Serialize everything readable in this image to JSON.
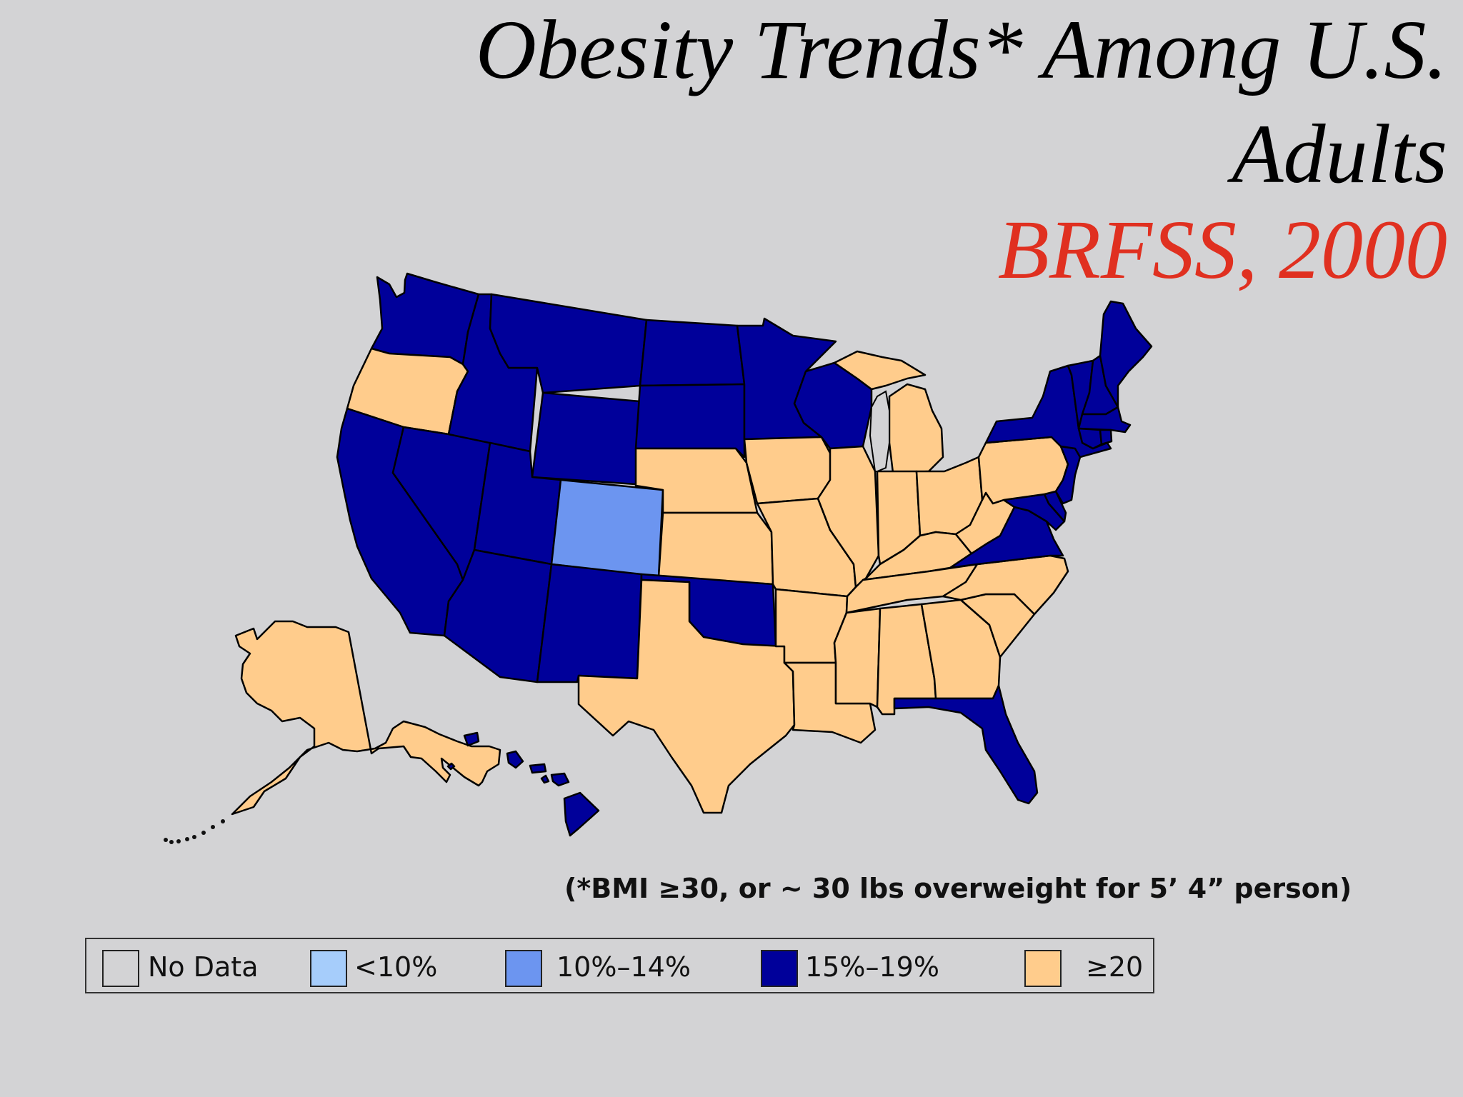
{
  "title": {
    "line1": "Obesity Trends* Among U.S.",
    "line2": "Adults",
    "line3": "BRFSS, 2000"
  },
  "footnote": "(*BMI ≥30, or ~ 30 lbs overweight for 5’ 4” person)",
  "legend": [
    {
      "label": "No Data",
      "color": "#d3d3d5"
    },
    {
      "label": "<10%",
      "color": "#a6cdfb"
    },
    {
      "label": "10%–14%",
      "color": "#6c95f0"
    },
    {
      "label": "15%–19%",
      "color": "#00009a"
    },
    {
      "label": "≥20",
      "color": "#ffcc8c"
    }
  ],
  "colors": {
    "background": "#d3d3d5",
    "title_red": "#e03020"
  },
  "states": [
    {
      "name": "Washington",
      "category": "15%–19%"
    },
    {
      "name": "Oregon",
      "category": "≥20"
    },
    {
      "name": "California",
      "category": "15%–19%"
    },
    {
      "name": "Nevada",
      "category": "15%–19%"
    },
    {
      "name": "Idaho",
      "category": "15%–19%"
    },
    {
      "name": "Montana",
      "category": "15%–19%"
    },
    {
      "name": "Wyoming",
      "category": "15%–19%"
    },
    {
      "name": "Utah",
      "category": "15%–19%"
    },
    {
      "name": "Arizona",
      "category": "15%–19%"
    },
    {
      "name": "Colorado",
      "category": "10%–14%"
    },
    {
      "name": "New Mexico",
      "category": "15%–19%"
    },
    {
      "name": "North Dakota",
      "category": "15%–19%"
    },
    {
      "name": "South Dakota",
      "category": "15%–19%"
    },
    {
      "name": "Nebraska",
      "category": "≥20"
    },
    {
      "name": "Kansas",
      "category": "≥20"
    },
    {
      "name": "Oklahoma",
      "category": "15%–19%"
    },
    {
      "name": "Texas",
      "category": "≥20"
    },
    {
      "name": "Minnesota",
      "category": "15%–19%"
    },
    {
      "name": "Iowa",
      "category": "≥20"
    },
    {
      "name": "Missouri",
      "category": "≥20"
    },
    {
      "name": "Arkansas",
      "category": "≥20"
    },
    {
      "name": "Louisiana",
      "category": "≥20"
    },
    {
      "name": "Wisconsin",
      "category": "15%–19%"
    },
    {
      "name": "Illinois",
      "category": "≥20"
    },
    {
      "name": "Michigan",
      "category": "≥20"
    },
    {
      "name": "Indiana",
      "category": "≥20"
    },
    {
      "name": "Ohio",
      "category": "≥20"
    },
    {
      "name": "Kentucky",
      "category": "≥20"
    },
    {
      "name": "Tennessee",
      "category": "≥20"
    },
    {
      "name": "Mississippi",
      "category": "≥20"
    },
    {
      "name": "Alabama",
      "category": "≥20"
    },
    {
      "name": "Georgia",
      "category": "≥20"
    },
    {
      "name": "Florida",
      "category": "15%–19%"
    },
    {
      "name": "South Carolina",
      "category": "≥20"
    },
    {
      "name": "North Carolina",
      "category": "≥20"
    },
    {
      "name": "Virginia",
      "category": "15%–19%"
    },
    {
      "name": "West Virginia",
      "category": "≥20"
    },
    {
      "name": "Pennsylvania",
      "category": "≥20"
    },
    {
      "name": "New York",
      "category": "15%–19%"
    },
    {
      "name": "Maryland",
      "category": "15%–19%"
    },
    {
      "name": "Delaware",
      "category": "15%–19%"
    },
    {
      "name": "New Jersey",
      "category": "15%–19%"
    },
    {
      "name": "Connecticut",
      "category": "15%–19%"
    },
    {
      "name": "Rhode Island",
      "category": "15%–19%"
    },
    {
      "name": "Massachusetts",
      "category": "15%–19%"
    },
    {
      "name": "Vermont",
      "category": "15%–19%"
    },
    {
      "name": "New Hampshire",
      "category": "15%–19%"
    },
    {
      "name": "Maine",
      "category": "15%–19%"
    },
    {
      "name": "Alaska",
      "category": "≥20"
    },
    {
      "name": "Hawaii",
      "category": "15%–19%"
    }
  ]
}
